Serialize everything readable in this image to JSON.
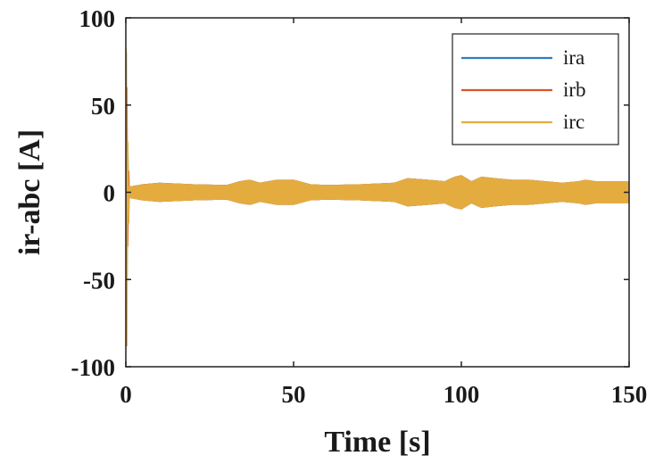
{
  "chart_data": {
    "type": "line",
    "xlabel": "Time [s]",
    "ylabel": "ir-abc [A]",
    "xlim": [
      0,
      150
    ],
    "ylim": [
      -100,
      100
    ],
    "x_ticks": [
      0,
      50,
      100,
      150
    ],
    "y_ticks": [
      -100,
      -50,
      0,
      50,
      100
    ],
    "x_tick_labels": [
      "0",
      "50",
      "100",
      "150"
    ],
    "y_tick_labels": [
      "-100",
      "-50",
      "0",
      "50",
      "100"
    ],
    "grid": false,
    "legend_position": "top-right",
    "series": [
      {
        "name": "ira",
        "color": "#2f7cc0",
        "startup_spike": [
          0,
          80,
          -62
        ],
        "envelope": {
          "x": [
            0,
            5,
            10,
            20,
            30,
            34,
            37,
            40,
            45,
            50,
            55,
            60,
            70,
            80,
            84,
            90,
            95,
            98,
            100,
            103,
            106,
            110,
            115,
            120,
            125,
            130,
            135,
            137,
            140,
            150
          ],
          "amplitude": [
            3,
            5,
            6,
            5,
            4.5,
            7,
            8,
            6,
            8,
            8,
            5,
            4.5,
            5,
            6,
            9,
            8,
            7,
            10,
            11,
            7,
            10,
            9,
            8,
            8,
            7,
            6,
            7,
            8,
            7,
            7
          ]
        }
      },
      {
        "name": "irb",
        "color": "#d9562a",
        "startup_spike": [
          0,
          -88,
          60
        ],
        "envelope": {
          "x": [
            0,
            5,
            10,
            20,
            30,
            34,
            37,
            40,
            45,
            50,
            55,
            60,
            70,
            80,
            84,
            90,
            95,
            98,
            100,
            103,
            106,
            110,
            115,
            120,
            125,
            130,
            135,
            137,
            140,
            150
          ],
          "amplitude": [
            3,
            5,
            6,
            5,
            4.5,
            7,
            8,
            6,
            8,
            8,
            5,
            4.5,
            5,
            6,
            9,
            8,
            7,
            10,
            11,
            7,
            10,
            9,
            8,
            8,
            7,
            6,
            7,
            8,
            7,
            7
          ]
        }
      },
      {
        "name": "irc",
        "color": "#e4ac3f",
        "startup_spike": [
          0,
          82,
          -88
        ],
        "envelope": {
          "x": [
            0,
            5,
            10,
            20,
            30,
            34,
            37,
            40,
            45,
            50,
            55,
            60,
            70,
            80,
            84,
            90,
            95,
            98,
            100,
            103,
            106,
            110,
            115,
            120,
            125,
            130,
            135,
            137,
            140,
            150
          ],
          "amplitude": [
            3,
            5,
            6,
            5,
            4.5,
            7,
            8,
            6,
            8,
            8,
            5,
            4.5,
            5,
            6,
            9,
            8,
            7,
            10,
            11,
            7,
            10,
            9,
            8,
            8,
            7,
            6,
            7,
            8,
            7,
            7
          ]
        }
      }
    ]
  }
}
